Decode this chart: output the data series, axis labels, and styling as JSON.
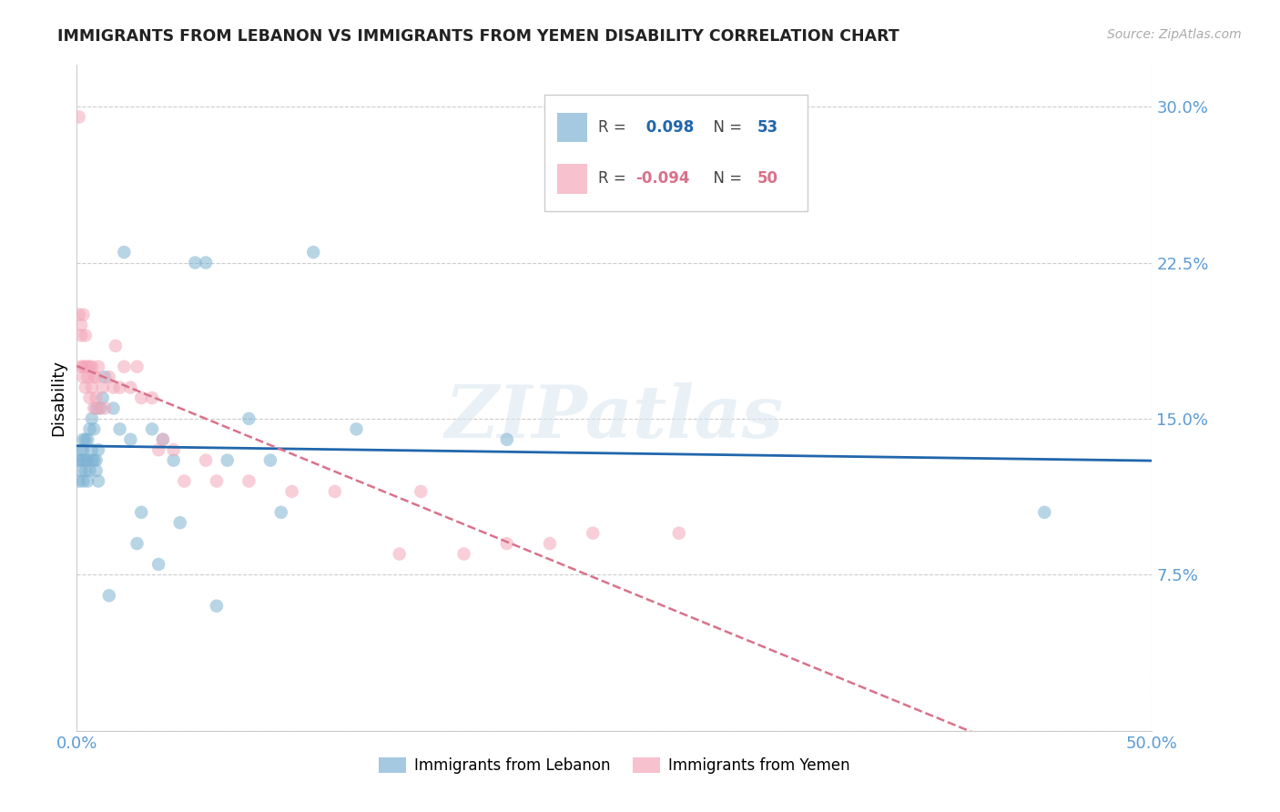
{
  "title": "IMMIGRANTS FROM LEBANON VS IMMIGRANTS FROM YEMEN DISABILITY CORRELATION CHART",
  "source": "Source: ZipAtlas.com",
  "ylabel": "Disability",
  "xlim": [
    0.0,
    0.5
  ],
  "ylim": [
    0.0,
    0.32
  ],
  "ytick_vals": [
    0.0,
    0.075,
    0.15,
    0.225,
    0.3
  ],
  "ytick_labels": [
    "",
    "7.5%",
    "15.0%",
    "22.5%",
    "30.0%"
  ],
  "xtick_vals": [
    0.0,
    0.1,
    0.2,
    0.3,
    0.4,
    0.5
  ],
  "xtick_labels": [
    "0.0%",
    "",
    "",
    "",
    "",
    "50.0%"
  ],
  "lebanon_color": "#7fb3d3",
  "yemen_color": "#f4a7b9",
  "lebanon_line_color": "#2166ac",
  "yemen_line_color": "#d9728a",
  "tick_color": "#5b9bd5",
  "grid_color": "#cccccc",
  "watermark": "ZIPatlas",
  "lebanon_R": 0.098,
  "lebanon_N": 53,
  "yemen_R": -0.094,
  "yemen_N": 50,
  "lebanon_x": [
    0.001,
    0.001,
    0.002,
    0.002,
    0.002,
    0.003,
    0.003,
    0.003,
    0.003,
    0.004,
    0.004,
    0.004,
    0.005,
    0.005,
    0.005,
    0.006,
    0.006,
    0.007,
    0.007,
    0.007,
    0.008,
    0.008,
    0.009,
    0.009,
    0.009,
    0.01,
    0.01,
    0.011,
    0.012,
    0.013,
    0.015,
    0.017,
    0.02,
    0.022,
    0.025,
    0.028,
    0.03,
    0.035,
    0.038,
    0.04,
    0.045,
    0.048,
    0.055,
    0.06,
    0.065,
    0.07,
    0.08,
    0.09,
    0.095,
    0.11,
    0.13,
    0.2,
    0.45
  ],
  "lebanon_y": [
    0.12,
    0.13,
    0.125,
    0.13,
    0.135,
    0.12,
    0.13,
    0.135,
    0.14,
    0.125,
    0.13,
    0.14,
    0.12,
    0.13,
    0.14,
    0.125,
    0.145,
    0.13,
    0.135,
    0.15,
    0.13,
    0.145,
    0.125,
    0.13,
    0.155,
    0.12,
    0.135,
    0.155,
    0.16,
    0.17,
    0.065,
    0.155,
    0.145,
    0.23,
    0.14,
    0.09,
    0.105,
    0.145,
    0.08,
    0.14,
    0.13,
    0.1,
    0.225,
    0.225,
    0.06,
    0.13,
    0.15,
    0.13,
    0.105,
    0.23,
    0.145,
    0.14,
    0.105
  ],
  "yemen_x": [
    0.001,
    0.001,
    0.002,
    0.002,
    0.002,
    0.003,
    0.003,
    0.003,
    0.004,
    0.004,
    0.004,
    0.005,
    0.005,
    0.006,
    0.006,
    0.007,
    0.007,
    0.008,
    0.008,
    0.009,
    0.009,
    0.01,
    0.01,
    0.012,
    0.013,
    0.015,
    0.017,
    0.018,
    0.02,
    0.022,
    0.025,
    0.028,
    0.03,
    0.035,
    0.038,
    0.04,
    0.045,
    0.05,
    0.06,
    0.065,
    0.08,
    0.1,
    0.12,
    0.15,
    0.16,
    0.18,
    0.2,
    0.22,
    0.24,
    0.28
  ],
  "yemen_y": [
    0.295,
    0.2,
    0.19,
    0.195,
    0.175,
    0.17,
    0.175,
    0.2,
    0.175,
    0.165,
    0.19,
    0.17,
    0.175,
    0.16,
    0.175,
    0.165,
    0.175,
    0.155,
    0.17,
    0.16,
    0.17,
    0.155,
    0.175,
    0.165,
    0.155,
    0.17,
    0.165,
    0.185,
    0.165,
    0.175,
    0.165,
    0.175,
    0.16,
    0.16,
    0.135,
    0.14,
    0.135,
    0.12,
    0.13,
    0.12,
    0.12,
    0.115,
    0.115,
    0.085,
    0.115,
    0.085,
    0.09,
    0.09,
    0.095,
    0.095
  ]
}
